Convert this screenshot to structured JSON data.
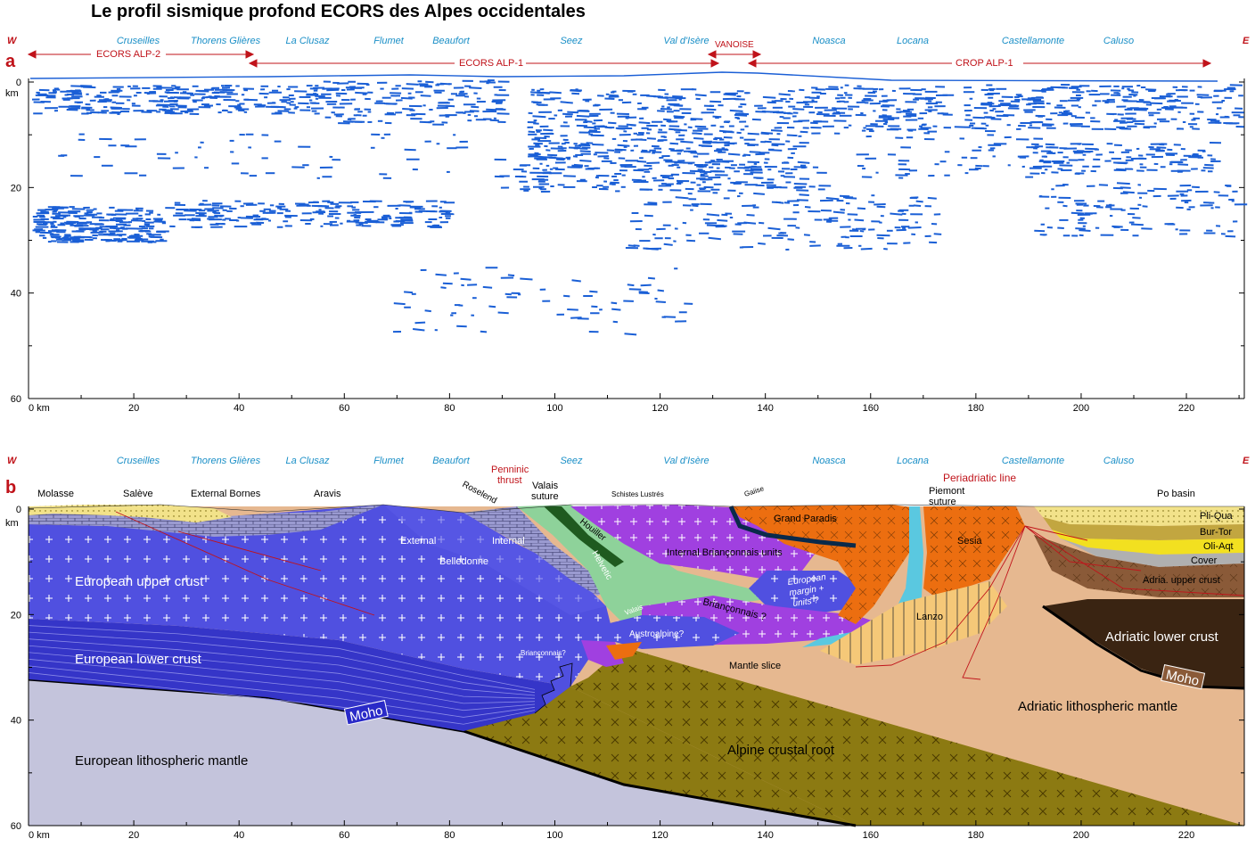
{
  "title": "Le profil sismique profond ECORS des Alpes occidentales",
  "compass": {
    "west": "W",
    "east": "E"
  },
  "panels": {
    "a": "a",
    "b": "b"
  },
  "places": [
    "Cruseilles",
    "Thorens Glières",
    "La Clusaz",
    "Flumet",
    "Beaufort",
    "Seez",
    "Val d'Isère",
    "Noasca",
    "Locana",
    "Castellamonte",
    "Caluso"
  ],
  "profiles": {
    "alp2": "ECORS ALP-2",
    "alp1": "ECORS ALP-1",
    "vanoise": "VANOISE",
    "crop": "CROP ALP-1"
  },
  "axes": {
    "depth_unit": "km",
    "depth_ticks": [
      "0",
      "20",
      "40",
      "60"
    ],
    "distance_ticks": [
      "0 km",
      "20",
      "40",
      "60",
      "80",
      "100",
      "120",
      "140",
      "160",
      "180",
      "200",
      "220"
    ]
  },
  "section_b": {
    "top_labels": {
      "molasse": "Molasse",
      "saleve": "Salève",
      "bornes": "External Bornes",
      "aravis": "Aravis",
      "roselend": "Roselend",
      "penninic": [
        "Penninic",
        "thrust"
      ],
      "valais": [
        "Valais",
        "suture"
      ],
      "schistes": "Schistes Lustrés",
      "gaiise": "Gaiise",
      "piemont": [
        "Piemont",
        "suture"
      ],
      "periadriatic": "Periadriatic line",
      "po": "Po basin"
    },
    "units": {
      "upper_crust": "European upper crust",
      "lower_crust": "European lower crust",
      "euro_mantle": "European lithospheric mantle",
      "moho_left": "Moho",
      "external": "External",
      "internal": "Internal",
      "belledonne": "Belledonne",
      "helvetic": "Helvetic",
      "houiller": "Houiller",
      "int_brianconnais": "Internal Briançonnais units",
      "euro_margin": [
        "European",
        "margin +",
        "units ?"
      ],
      "brianconnais": "Briançonnais ?",
      "valais_unit": "Valais",
      "austroalpine": "Austroalpine?",
      "brianconnais_q": "Briançonnais?",
      "grand_paradis": "Grand Paradis",
      "sesia": "Sesia",
      "lanzo": "Lanzo",
      "mantle_slice": "Mantle slice",
      "alpine_root": "Alpine crustal root",
      "adria_mantle": "Adriatic lithospheric mantle",
      "adria_lower": "Adriatic lower crust",
      "adria_upper": "Adria. upper crust",
      "moho_right": "Moho",
      "pliqua": "Pli-Qua",
      "burtor": "Bur-Tor",
      "oliaqt": "Oli-Aqt",
      "cover": "Cover"
    }
  },
  "colors": {
    "seismic": "#1a5fd6",
    "upper_crust": "#5050e0",
    "lower_crust": "#3535c8",
    "euro_mantle": "#c4c4dc",
    "alpine_root": "#8c7a12",
    "adria_mantle": "#e6b890",
    "grand_paradis": "#ec6e10",
    "internal_brianconnais": "#a040e0",
    "valais_green": "#8ed29a",
    "molasse": "#f2e28a",
    "adria_lower": "#3a2412",
    "adria_upper": "#8a5a38",
    "lanzo": "#f5c878",
    "profile_red": "#c0131a",
    "place_blue": "#1a8fc7"
  }
}
